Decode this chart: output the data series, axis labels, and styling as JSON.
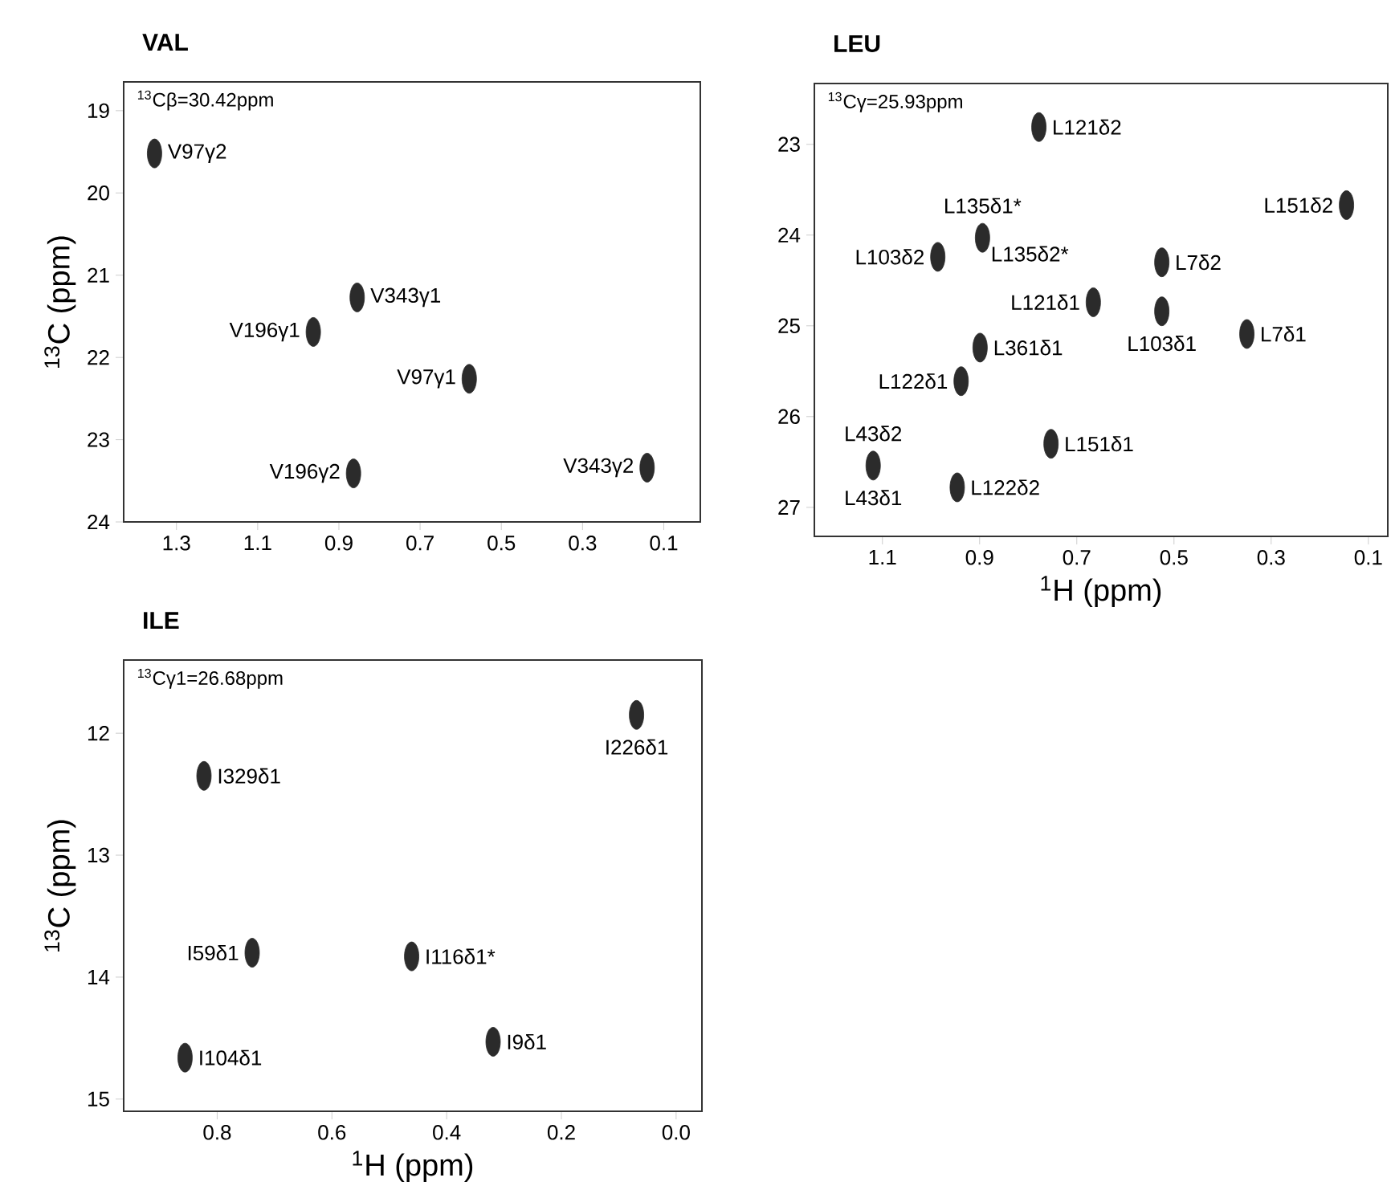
{
  "chart_data": [
    {
      "type": "scatter",
      "title": "VAL",
      "ylabel": "$^{13}$C (ppm)",
      "xlim": [
        1.43,
        0.01
      ],
      "ylim": [
        24.0,
        18.65
      ],
      "xticks": [
        1.3,
        1.1,
        0.9,
        0.7,
        0.5,
        0.3,
        0.1
      ],
      "yticks": [
        19,
        20,
        21,
        22,
        23,
        24
      ],
      "color": "#2b2b2b",
      "x": [
        1.354,
        0.855,
        0.963,
        0.579,
        0.864,
        0.141
      ],
      "values": [
        19.52,
        21.27,
        21.69,
        22.26,
        23.41,
        23.34
      ],
      "annotations": [
        "$^{13}$Cβ=30.42ppm",
        {
          "text": "V97γ2",
          "x": 1.354,
          "y": 19.52
        },
        {
          "text": "V343γ1",
          "x": 0.855,
          "y": 21.27
        },
        {
          "text": "V196γ1",
          "x": 0.963,
          "y": 21.69
        },
        {
          "text": "V97γ1",
          "x": 0.579,
          "y": 22.26
        },
        {
          "text": "V196γ2",
          "x": 0.864,
          "y": 23.41
        },
        {
          "text": "V343γ2",
          "x": 0.141,
          "y": 23.34
        }
      ]
    },
    {
      "type": "scatter",
      "title": "LEU",
      "xlabel": "$^{1}$H (ppm)",
      "xlim": [
        1.24,
        0.06
      ],
      "ylim": [
        27.32,
        22.33
      ],
      "xticks": [
        1.1,
        0.9,
        0.7,
        0.5,
        0.3,
        0.1
      ],
      "yticks": [
        23,
        24,
        25,
        26,
        27
      ],
      "color": "#2b2b2b",
      "x": [
        0.778,
        0.145,
        0.894,
        0.986,
        0.525,
        0.666,
        0.525,
        0.35,
        0.899,
        0.938,
        0.753,
        1.119,
        0.946
      ],
      "values": [
        22.81,
        23.67,
        24.03,
        24.24,
        24.3,
        24.74,
        24.84,
        25.09,
        25.24,
        25.61,
        26.3,
        26.54,
        26.78
      ],
      "annotations": [
        "$^{13}$Cγ=25.93ppm",
        {
          "text": "L121δ2",
          "x": 0.778,
          "y": 22.81
        },
        {
          "text": "L151δ2",
          "x": 0.145,
          "y": 23.67
        },
        {
          "text": "L135δ1*",
          "x": 0.894,
          "y": 24.03
        },
        {
          "text": "L135δ2*",
          "x": 0.894,
          "y": 24.03
        },
        {
          "text": "L103δ2",
          "x": 0.986,
          "y": 24.24
        },
        {
          "text": "L7δ2",
          "x": 0.525,
          "y": 24.3
        },
        {
          "text": "L121δ1",
          "x": 0.666,
          "y": 24.74
        },
        {
          "text": "L103δ1",
          "x": 0.525,
          "y": 24.84
        },
        {
          "text": "L7δ1",
          "x": 0.35,
          "y": 25.09
        },
        {
          "text": "L361δ1",
          "x": 0.899,
          "y": 25.24
        },
        {
          "text": "L122δ1",
          "x": 0.938,
          "y": 25.61
        },
        {
          "text": "L151δ1",
          "x": 0.753,
          "y": 26.3
        },
        {
          "text": "L43δ2",
          "x": 1.119,
          "y": 26.54
        },
        {
          "text": "L43δ1",
          "x": 1.119,
          "y": 26.54
        },
        {
          "text": "L122δ2",
          "x": 0.946,
          "y": 26.78
        }
      ]
    },
    {
      "type": "scatter",
      "title": "ILE",
      "xlabel": "$^{1}$H (ppm)",
      "ylabel": "$^{13}$C (ppm)",
      "xlim": [
        0.963,
        -0.045
      ],
      "ylim": [
        15.1,
        11.4
      ],
      "xticks": [
        0.8,
        0.6,
        0.4,
        0.2,
        {
          "value": 0,
          "label": "0.0"
        }
      ],
      "yticks": [
        12,
        13,
        14,
        15
      ],
      "color": "#2b2b2b",
      "x": [
        0.069,
        0.823,
        0.739,
        0.461,
        0.856,
        0.319
      ],
      "values": [
        11.85,
        12.35,
        13.8,
        13.83,
        14.66,
        14.53
      ],
      "annotations": [
        "$^{13}$Cγ1=26.68ppm",
        {
          "text": "I226δ1",
          "x": 0.069,
          "y": 11.85
        },
        {
          "text": "I329δ1",
          "x": 0.823,
          "y": 12.35
        },
        {
          "text": "I59δ1",
          "x": 0.739,
          "y": 13.8
        },
        {
          "text": "I116δ1*",
          "x": 0.461,
          "y": 13.83
        },
        {
          "text": "I104δ1",
          "x": 0.856,
          "y": 14.66
        },
        {
          "text": "I9δ1",
          "x": 0.319,
          "y": 14.53
        }
      ]
    }
  ]
}
